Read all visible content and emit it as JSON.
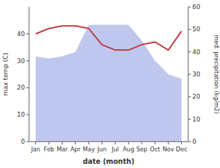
{
  "chart_data": {
    "type": "line",
    "categories": [
      "Jan",
      "Feb",
      "Mar",
      "Apr",
      "May",
      "Jun",
      "Jul",
      "Aug",
      "Sep",
      "Oct",
      "Nov",
      "Dec"
    ],
    "series": [
      {
        "type": "area",
        "axis": "y2",
        "color": "#aab4e8",
        "values": [
          38,
          37,
          38,
          40,
          52,
          52,
          52,
          52,
          45,
          36,
          30,
          28
        ]
      },
      {
        "type": "line",
        "color": "#c0393b",
        "values": [
          40,
          42,
          43,
          43,
          42,
          36,
          34,
          34,
          36,
          37,
          34,
          41
        ]
      }
    ],
    "xlabel": "date (month)",
    "ylabel": "max temp (C)",
    "y2label": "med. precipitation (kg/m2)",
    "ylim": [
      0,
      50
    ],
    "yticks": [
      0,
      10,
      20,
      30,
      40
    ],
    "y2lim": [
      0,
      60
    ],
    "y2ticks": [
      0,
      10,
      20,
      30,
      40,
      50,
      60
    ]
  }
}
